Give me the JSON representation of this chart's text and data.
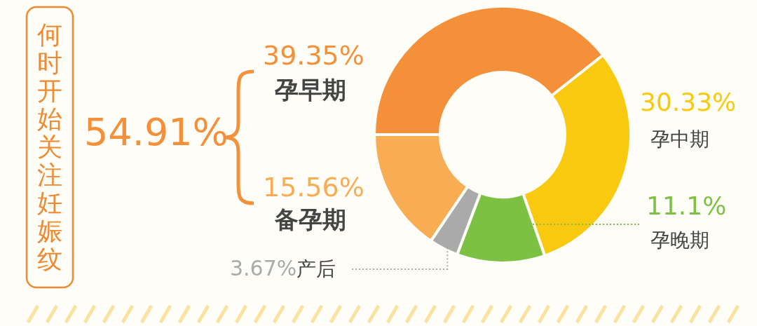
{
  "chart_data": {
    "type": "donut",
    "title": "何时开始关注妊娠纹",
    "categories": [
      "孕早期",
      "孕中期",
      "孕晚期",
      "产后",
      "备孕期"
    ],
    "values": [
      39.35,
      30.33,
      11.1,
      3.67,
      15.56
    ],
    "colors": [
      "#f4903a",
      "#f9c90f",
      "#7dc142",
      "#aaaaaa",
      "#f8ad55"
    ],
    "value_labels": [
      "39.35%",
      "30.33%",
      "11.1%",
      "3.67%",
      "15.56%"
    ],
    "annotations": [
      "54.91%"
    ]
  }
}
